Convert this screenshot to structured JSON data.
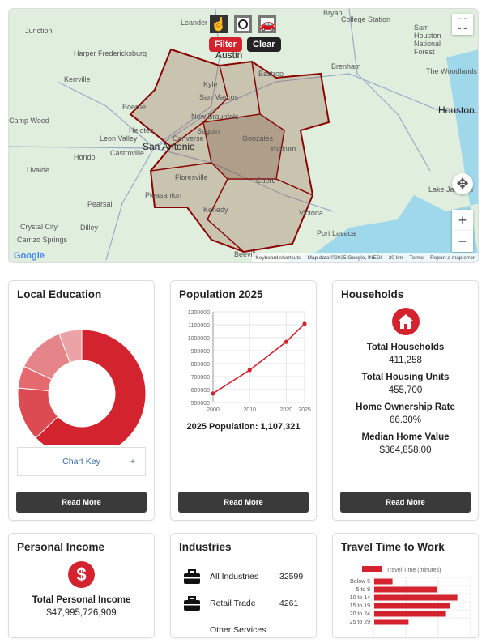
{
  "map": {
    "tools": {
      "pointer_icon": "hand-pointer-icon",
      "circle_icon": "circle-icon",
      "drive_icon": "car-icon"
    },
    "filter_label": "Filter",
    "clear_label": "Clear",
    "labels": [
      "Austin",
      "San Antonio",
      "Houston",
      "Bryan",
      "College Station",
      "Leander",
      "Fredericksburg",
      "Harper",
      "Kerrville",
      "Junction",
      "Boerne",
      "Helotes",
      "Castroville",
      "Hondo",
      "Uvalde",
      "Leon Valley",
      "Converse",
      "New Braunfels",
      "Seguin",
      "Kyle",
      "San Marcos",
      "Bastrop",
      "Gonzales",
      "Yoakum",
      "Cuero",
      "Floresville",
      "Pleasanton",
      "Kenedy",
      "Victoria",
      "Port Lavaca",
      "Brenham",
      "Pearsall",
      "Dilley",
      "Crystal City",
      "Carrizo Springs",
      "Beeville",
      "Lake Jackson",
      "Sam Houston National Forest",
      "The Woodlands",
      "Camp Wood"
    ],
    "google_logo": "Google",
    "attribution": {
      "shortcuts": "Keyboard shortcuts",
      "data": "Map data ©2025 Google, INEGI",
      "scale": "20 km",
      "terms": "Terms",
      "report": "Report a map error"
    },
    "zoom_in": "+",
    "zoom_out": "−"
  },
  "education": {
    "title": "Local Education",
    "chart_key": "Chart Key",
    "chart_key_toggle": "+",
    "read_more": "Read More",
    "chart_data": {
      "type": "pie",
      "donut": true,
      "values": [
        62.8,
        13.6,
        5.6,
        12.2,
        5.8
      ],
      "colors": [
        "#d3232e",
        "#dc4a52",
        "#e56a70",
        "#e58489",
        "#eca3a7"
      ]
    }
  },
  "population": {
    "title": "Population 2025",
    "summary": "2025 Population: 1,107,321",
    "read_more": "Read More",
    "chart_data": {
      "type": "line",
      "x": [
        2000,
        2010,
        2020,
        2025
      ],
      "y": [
        570000,
        750000,
        968000,
        1107321
      ],
      "ylim": [
        500000,
        1200000
      ],
      "yticks": [
        "500000",
        "600000",
        "700000",
        "800000",
        "900000",
        "1000000",
        "1100000",
        "1200000"
      ],
      "xticks": [
        "2000",
        "2010",
        "2020",
        "2025"
      ],
      "color": "#d3232e",
      "grid": true
    }
  },
  "households": {
    "title": "Households",
    "icon": "house-icon",
    "stats": [
      {
        "label": "Total Households",
        "value": "411,258"
      },
      {
        "label": "Total Housing Units",
        "value": "455,700"
      },
      {
        "label": "Home Ownership Rate",
        "value": "66.30%"
      },
      {
        "label": "Median Home Value",
        "value": "$364,858.00"
      }
    ],
    "read_more": "Read More"
  },
  "income": {
    "title": "Personal Income",
    "icon": "dollar-icon",
    "label": "Total Personal Income",
    "value": "$47,995,726,909"
  },
  "industries": {
    "title": "Industries",
    "items": [
      {
        "name": "All Industries",
        "value": "32599",
        "icon": "briefcase-icon"
      },
      {
        "name": "Retail Trade",
        "value": "4261",
        "icon": "briefcase-icon"
      },
      {
        "name": "Other Services",
        "value": ""
      }
    ]
  },
  "travel": {
    "title": "Travel Time to Work",
    "chart_data": {
      "type": "bar",
      "orientation": "horizontal",
      "legend": "Travel Time (minutes)",
      "legend_position": "top",
      "categories": [
        "Below 5",
        "5 to 9",
        "10 to 14",
        "15 to 19",
        "20 to 24",
        "25 to 29"
      ],
      "values": [
        565,
        1940,
        2565,
        2350,
        2215,
        1060
      ],
      "color": "#d3232e",
      "grid": true
    }
  }
}
